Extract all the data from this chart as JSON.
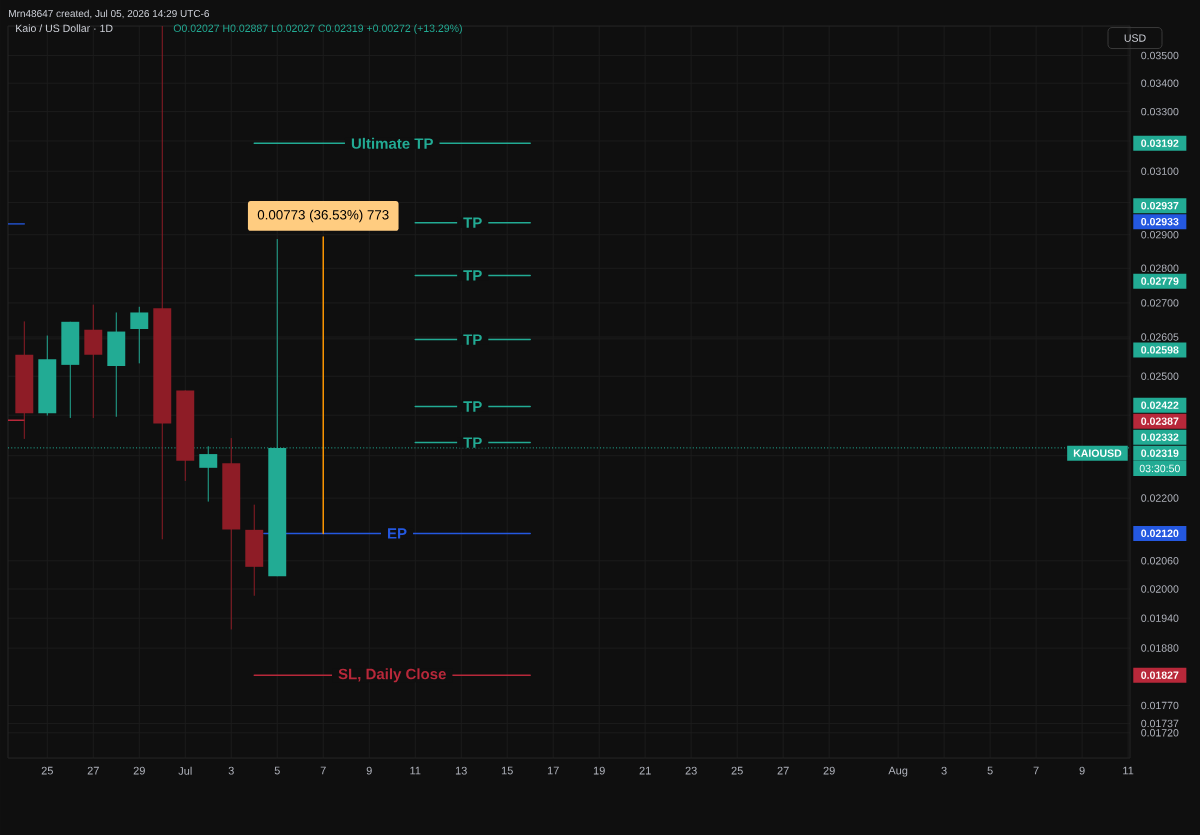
{
  "chart_data": {
    "type": "candlestick",
    "title": "Kaio / US Dollar · 1D",
    "subtitle": "O0.02027 H0.02887 L0.02027 C0.02319 +0.00272 (+13.29%)",
    "ylabel": "USD",
    "x": [
      "2026-06-24",
      "2026-06-25",
      "2026-06-26",
      "2026-06-27",
      "2026-06-28",
      "2026-06-29",
      "2026-06-30",
      "2026-07-01",
      "2026-07-02",
      "2026-07-03",
      "2026-07-04",
      "2026-07-05"
    ],
    "ohlc": [
      [
        0.02557,
        0.02648,
        0.02341,
        0.02405
      ],
      [
        0.02405,
        0.02609,
        0.02399,
        0.02545
      ],
      [
        0.0253,
        0.02647,
        0.02393,
        0.02647
      ],
      [
        0.02625,
        0.02695,
        0.02393,
        0.02557
      ],
      [
        0.02527,
        0.02673,
        0.02396,
        0.0262
      ],
      [
        0.02627,
        0.02689,
        0.02534,
        0.02673
      ],
      [
        0.02685,
        0.0361,
        0.02107,
        0.02379
      ],
      [
        0.02463,
        0.02463,
        0.0224,
        0.02288
      ],
      [
        0.02271,
        0.02323,
        0.02192,
        0.02304
      ],
      [
        0.02282,
        0.02343,
        0.01917,
        0.02129
      ],
      [
        0.02128,
        0.02185,
        0.01986,
        0.02047
      ],
      [
        0.02027,
        0.02887,
        0.02027,
        0.02319
      ]
    ],
    "colors": [
      "#8e1c26",
      "#22ab94",
      "#22ab94",
      "#8e1c26",
      "#22ab94",
      "#22ab94",
      "#8e1c26",
      "#8e1c26",
      "#22ab94",
      "#8e1c26",
      "#8e1c26",
      "#22ab94"
    ],
    "series": [
      {
        "name": "Ultimate TP",
        "type": "line",
        "color": "#22ab94",
        "x": [
          "2026-07-04",
          "2026-07-16"
        ],
        "values": [
          0.03192,
          0.03192
        ]
      },
      {
        "name": "TP",
        "type": "line",
        "color": "#22ab94",
        "x": [
          "2026-07-11",
          "2026-07-16"
        ],
        "values": [
          0.02937,
          0.02937
        ]
      },
      {
        "name": "TP",
        "type": "line",
        "color": "#22ab94",
        "x": [
          "2026-07-11",
          "2026-07-16"
        ],
        "values": [
          0.02779,
          0.02779
        ]
      },
      {
        "name": "TP",
        "type": "line",
        "color": "#22ab94",
        "x": [
          "2026-07-11",
          "2026-07-16"
        ],
        "values": [
          0.02598,
          0.02598
        ]
      },
      {
        "name": "TP",
        "type": "line",
        "color": "#22ab94",
        "x": [
          "2026-07-11",
          "2026-07-16"
        ],
        "values": [
          0.02422,
          0.02422
        ]
      },
      {
        "name": "TP",
        "type": "line",
        "color": "#22ab94",
        "x": [
          "2026-07-11",
          "2026-07-16"
        ],
        "values": [
          0.02332,
          0.02332
        ]
      },
      {
        "name": "EP",
        "type": "line",
        "color": "#2458e0",
        "x": [
          "2026-07-04T10:00",
          "2026-07-16"
        ],
        "values": [
          0.0212,
          0.0212
        ]
      },
      {
        "name": "SL, Daily Close",
        "type": "line",
        "color": "#b8283a",
        "x": [
          "2026-07-04",
          "2026-07-16"
        ],
        "values": [
          0.01827,
          0.01827
        ]
      },
      {
        "type": "line",
        "color": "#2458e0",
        "x": [
          "2026-06-23T07:00",
          "2026-06-24"
        ],
        "values": [
          0.02933,
          0.02933
        ]
      },
      {
        "type": "line",
        "color": "#b8283a",
        "x": [
          "2026-06-23T07:00",
          "2026-06-24"
        ],
        "values": [
          0.02387,
          0.02387
        ]
      },
      {
        "type": "line",
        "color": "#ff9800",
        "x": [
          "2026-07-07",
          "2026-07-07"
        ],
        "values": [
          0.0212,
          0.02893
        ]
      }
    ],
    "ref_lines": [
      {
        "axis": "y",
        "value": 0.02319,
        "label": "KAIOUSD",
        "color": "#22ab94",
        "line_style": "dotted"
      }
    ],
    "annotations": [
      "Mrn48647 created, Jul 05, 2026 14:29 UTC-6",
      {
        "text": "0.00773 (36.53%) 773",
        "x": "2026-07-07",
        "y": 0.02893
      },
      "03:30:50",
      "0.03192",
      "0.02937",
      "0.02779",
      "0.02598",
      "0.02422",
      "0.02332",
      "0.02120",
      "0.01827",
      "0.02933",
      "0.02387",
      "0.02319"
    ],
    "xlim": [
      "2026-06-23T07:00",
      "2026-08-11T02:00"
    ],
    "ylim": [
      0.01675,
      0.0361
    ],
    "log": true,
    "grid": true,
    "xticks": [
      {
        "value": "2026-06-25",
        "label": "25"
      },
      {
        "value": "2026-06-27",
        "label": "27"
      },
      {
        "value": "2026-06-29",
        "label": "29"
      },
      {
        "value": "2026-07-01",
        "label": "Jul"
      },
      {
        "value": "2026-07-03",
        "label": "3"
      },
      {
        "value": "2026-07-05",
        "label": "5"
      },
      {
        "value": "2026-07-07",
        "label": "7"
      },
      {
        "value": "2026-07-09",
        "label": "9"
      },
      {
        "value": "2026-07-11",
        "label": "11"
      },
      {
        "value": "2026-07-13",
        "label": "13"
      },
      {
        "value": "2026-07-15",
        "label": "15"
      },
      {
        "value": "2026-07-17",
        "label": "17"
      },
      {
        "value": "2026-07-19",
        "label": "19"
      },
      {
        "value": "2026-07-21",
        "label": "21"
      },
      {
        "value": "2026-07-23",
        "label": "23"
      },
      {
        "value": "2026-07-25",
        "label": "25"
      },
      {
        "value": "2026-07-27",
        "label": "27"
      },
      {
        "value": "2026-07-29",
        "label": "29"
      },
      {
        "value": "2026-08-01",
        "label": "Aug"
      },
      {
        "value": "2026-08-03",
        "label": "3"
      },
      {
        "value": "2026-08-05",
        "label": "5"
      },
      {
        "value": "2026-08-07",
        "label": "7"
      },
      {
        "value": "2026-08-09",
        "label": "9"
      },
      {
        "value": "2026-08-11",
        "label": "11"
      }
    ],
    "yticks": [
      {
        "value": 0.035,
        "label": "0.03500"
      },
      {
        "value": 0.034,
        "label": "0.03400"
      },
      {
        "value": 0.033,
        "label": "0.03300"
      },
      {
        "value": 0.032,
        "label": null
      },
      {
        "value": 0.031,
        "label": "0.03100"
      },
      {
        "value": 0.03,
        "label": null
      },
      {
        "value": 0.029,
        "label": "0.02900"
      },
      {
        "value": 0.028,
        "label": "0.02800"
      },
      {
        "value": 0.027,
        "label": "0.02700"
      },
      {
        "value": 0.02605,
        "label": "0.02605"
      },
      {
        "value": 0.026,
        "label": null
      },
      {
        "value": 0.025,
        "label": "0.02500"
      },
      {
        "value": 0.024,
        "label": null
      },
      {
        "value": 0.023,
        "label": null
      },
      {
        "value": 0.022,
        "label": "0.02200"
      },
      {
        "value": 0.0206,
        "label": "0.02060"
      },
      {
        "value": 0.02,
        "label": "0.02000"
      },
      {
        "value": 0.0194,
        "label": "0.01940"
      },
      {
        "value": 0.0188,
        "label": "0.01880"
      },
      {
        "value": 0.0177,
        "label": "0.01770"
      },
      {
        "value": 0.01737,
        "label": "0.01737"
      },
      {
        "value": 0.0172,
        "label": "0.01720"
      }
    ]
  }
}
